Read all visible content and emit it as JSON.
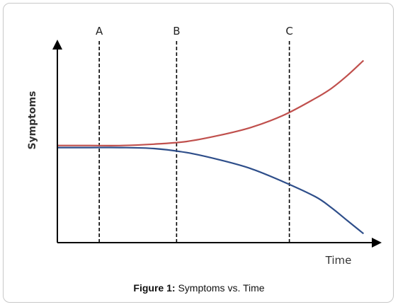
{
  "caption": {
    "label": "Figure 1:",
    "text": "Symptoms vs. Time"
  },
  "chart_data": {
    "type": "line",
    "title": "",
    "xlabel": "Time",
    "ylabel": "Symptoms",
    "xlim": [
      0,
      100
    ],
    "ylim": [
      0,
      100
    ],
    "grid": false,
    "legend": "none",
    "markers": [
      {
        "label": "A",
        "x": 13
      },
      {
        "label": "B",
        "x": 37
      },
      {
        "label": "C",
        "x": 72
      }
    ],
    "series": [
      {
        "color": "#c0504d",
        "x": [
          0,
          10,
          20,
          30,
          40,
          50,
          60,
          70,
          80,
          85,
          90,
          95
        ],
        "y": [
          48.5,
          48.5,
          48.5,
          49.2,
          50.5,
          53.5,
          57.5,
          63.5,
          72,
          77,
          83.5,
          91
        ]
      },
      {
        "color": "#2e4e8a",
        "x": [
          0,
          10,
          20,
          30,
          40,
          50,
          60,
          70,
          80,
          85,
          90,
          95
        ],
        "y": [
          47.5,
          47.5,
          47.5,
          47,
          45,
          41.5,
          37,
          30.5,
          23,
          17.5,
          11,
          4.5
        ]
      }
    ]
  }
}
